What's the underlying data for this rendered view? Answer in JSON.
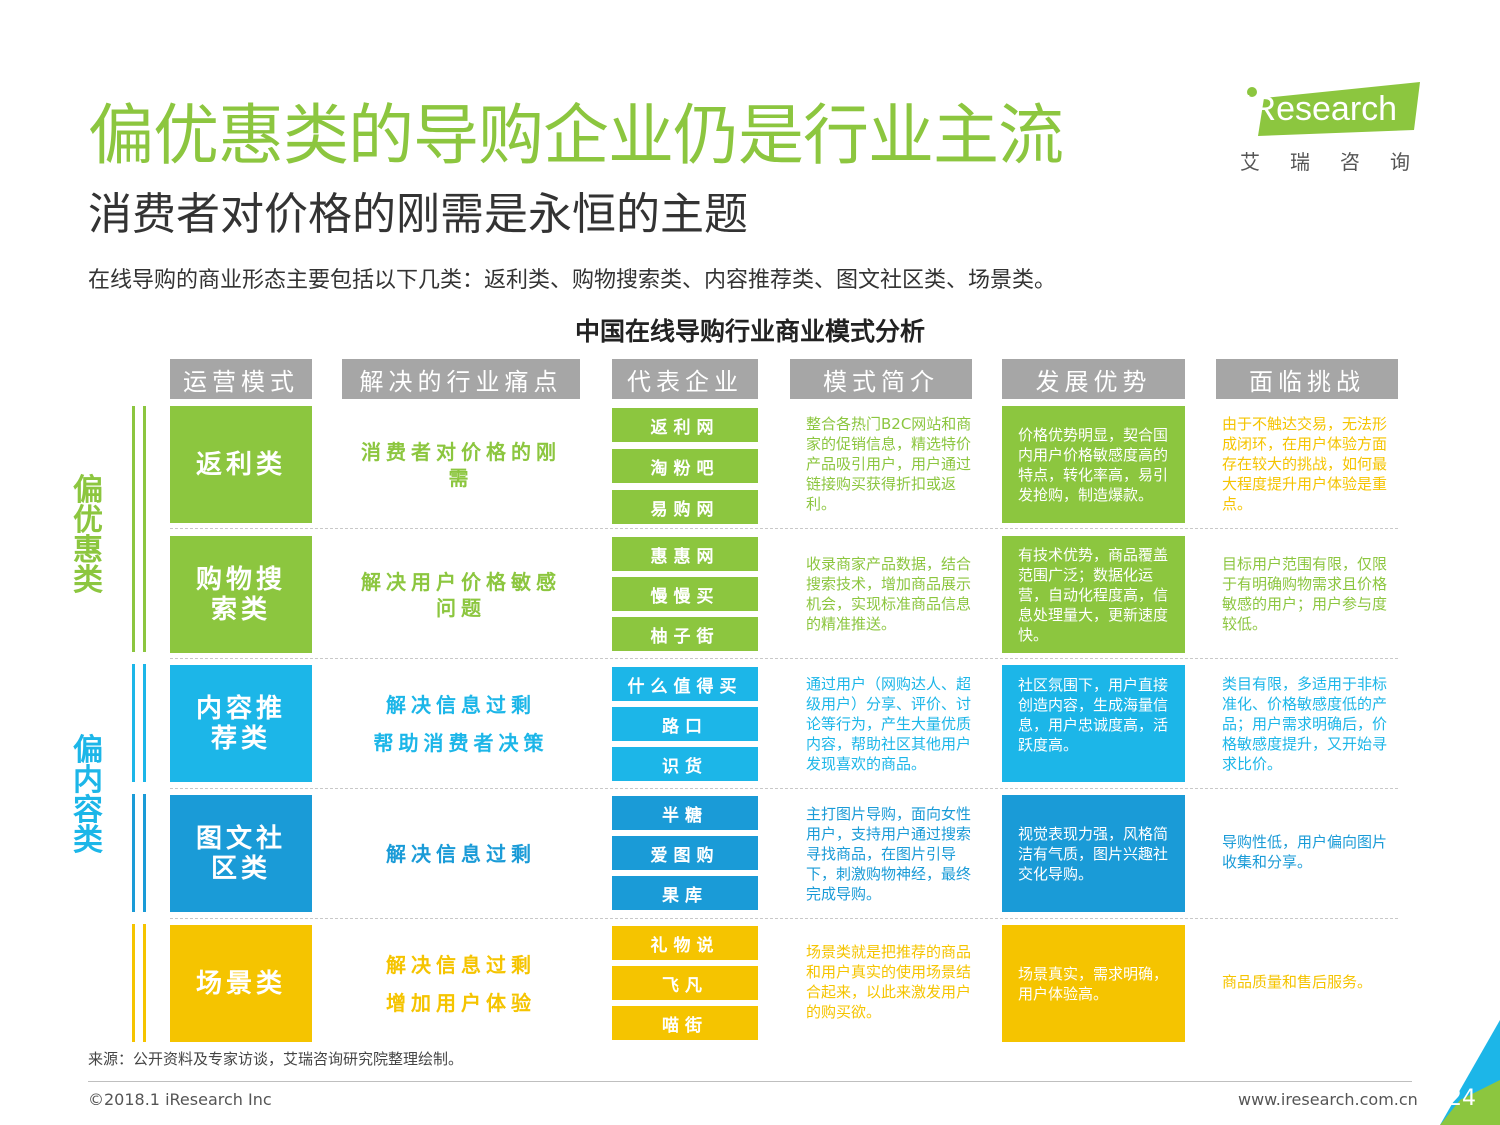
{
  "title": "偏优惠类的导购企业仍是行业主流",
  "subtitle": "消费者对价格的刚需是永恒的主题",
  "intro": "在线导购的商业形态主要包括以下几类：返利类、购物搜索类、内容推荐类、图文社区类、场景类。",
  "logo": {
    "text": "iResearch",
    "sub": "艾瑞咨询"
  },
  "table_title": "中国在线导购行业商业模式分析",
  "headers": [
    "运营模式",
    "解决的行业痛点",
    "代表企业",
    "模式简介",
    "发展优势",
    "面临挑战"
  ],
  "groups": [
    "偏优惠类",
    "偏内容类"
  ],
  "rows": [
    {
      "type": "返利类",
      "pain": [
        "消费者对价格的刚需"
      ],
      "companies": [
        "返利网",
        "淘粉吧",
        "易购网"
      ],
      "intro": "整合各热门B2C网站和商家的促销信息，精选特价产品吸引用户，用户通过链接购买获得折扣或返利。",
      "advantage": "价格优势明显，契合国内用户价格敏感度高的特点，转化率高，易引发抢购，制造爆款。",
      "challenge": "由于不触达交易，无法形成闭环，在用户体验方面存在较大的挑战，如何最大程度提升用户体验是重点。"
    },
    {
      "type": "购物搜索类",
      "pain": [
        "解决用户价格敏感问题"
      ],
      "companies": [
        "惠惠网",
        "慢慢买",
        "柚子街"
      ],
      "intro": "收录商家产品数据，结合搜索技术，增加商品展示机会，实现标准商品信息的精准推送。",
      "advantage": "有技术优势，商品覆盖范围广泛；数据化运营，自动化程度高，信息处理量大，更新速度快。",
      "challenge": "目标用户范围有限，仅限于有明确购物需求且价格敏感的用户；用户参与度较低。"
    },
    {
      "type": "内容推荐类",
      "pain": [
        "解决信息过剩",
        "帮助消费者决策"
      ],
      "companies": [
        "什么值得买",
        "路口",
        "识货"
      ],
      "intro": "通过用户（网购达人、超级用户）分享、评价、讨论等行为，产生大量优质内容，帮助社区其他用户发现喜欢的商品。",
      "advantage": "社区氛围下，用户直接创造内容，生成海量信息，用户忠诚度高，活跃度高。",
      "challenge": "类目有限，多适用于非标准化、价格敏感度低的产品；用户需求明确后，价格敏感度提升，又开始寻求比价。"
    },
    {
      "type": "图文社区类",
      "pain": [
        "解决信息过剩"
      ],
      "companies": [
        "半糖",
        "爱图购",
        "果库"
      ],
      "intro": "主打图片导购，面向女性用户，支持用户通过搜索寻找商品，在图片引导下，刺激购物神经，最终完成导购。",
      "advantage": "视觉表现力强，风格简洁有气质，图片兴趣社交化导购。",
      "challenge": "导购性低，用户偏向图片收集和分享。"
    },
    {
      "type": "场景类",
      "pain": [
        "解决信息过剩",
        "增加用户体验"
      ],
      "companies": [
        "礼物说",
        "飞凡",
        "喵街"
      ],
      "intro": "场景类就是把推荐的商品和用户真实的使用场景结合起来，以此来激发用户的购买欲。",
      "advantage": "场景真实，需求明确，用户体验高。",
      "challenge": "商品质量和售后服务。"
    }
  ],
  "source": "来源：公开资料及专家访谈，艾瑞咨询研究院整理绘制。",
  "copyright": "©2018.1 iResearch Inc",
  "website": "www.iresearch.com.cn",
  "page_number": "24",
  "colors": {
    "green": "#8cc63f",
    "cyan": "#1cb6e8",
    "blue": "#1a9bd7",
    "yellow": "#f5c400",
    "header_gray": "#a6a6a6"
  }
}
